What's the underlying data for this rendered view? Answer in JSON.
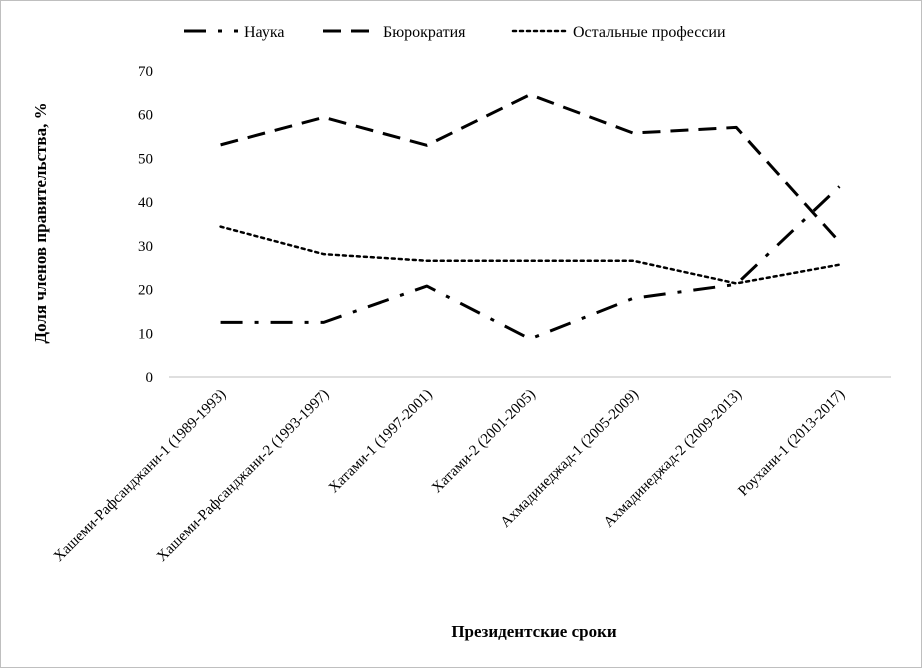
{
  "chart_data": {
    "type": "line",
    "title": "",
    "xlabel": "Президентские сроки",
    "ylabel": "Доля членов правительства, %",
    "ylim": [
      0,
      70
    ],
    "yticks": [
      0,
      10,
      20,
      30,
      40,
      50,
      60,
      70
    ],
    "grid": false,
    "legend_position": "top",
    "categories": [
      "Хашеми-Рафсанджани-1 (1989-1993)",
      "Хашеми-Рафсанджани-2 (1993-1997)",
      "Хатами-1 (1997-2001)",
      "Хатами-2 (2001-2005)",
      "Ахмадинеджад-1 (2005-2009)",
      "Ахмадинеджад-2 (2009-2013)",
      "Роухани-1 (2013-2017)"
    ],
    "series": [
      {
        "name": "Наука",
        "style": "dash-dot",
        "color": "#000000",
        "values": [
          12.5,
          12.5,
          20.8,
          8.7,
          18.0,
          21.2,
          43.6
        ]
      },
      {
        "name": "Бюрократия",
        "style": "dashed",
        "color": "#000000",
        "values": [
          53.1,
          59.4,
          53.0,
          64.6,
          55.8,
          57.1,
          30.9
        ]
      },
      {
        "name": "Остальные профессии",
        "style": "dotted",
        "color": "#000000",
        "values": [
          34.4,
          28.1,
          26.6,
          26.6,
          26.6,
          21.4,
          25.7
        ]
      }
    ]
  }
}
